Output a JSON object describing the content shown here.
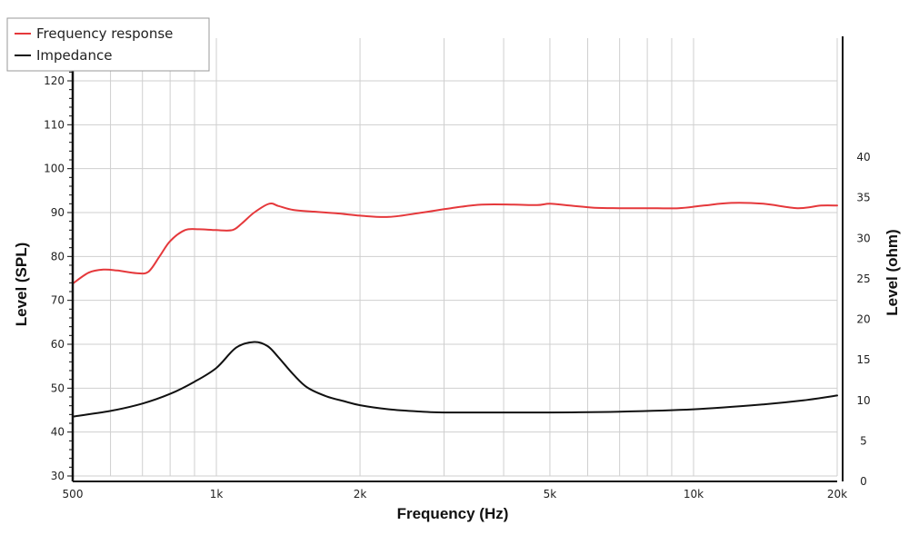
{
  "chart_data": {
    "type": "line",
    "xlabel": "Frequency (Hz)",
    "ylabel": "Level (SPL)",
    "y2label": "Level (ohm)",
    "x_scale": "log",
    "xlim": [
      500,
      20000
    ],
    "ylim": [
      30,
      125
    ],
    "y2lim": [
      0,
      40
    ],
    "grid": true,
    "legend_position": "top-left",
    "x_ticks": [
      {
        "value": 500,
        "label": "500"
      },
      {
        "value": 1000,
        "label": "1k"
      },
      {
        "value": 2000,
        "label": "2k"
      },
      {
        "value": 5000,
        "label": "5k"
      },
      {
        "value": 10000,
        "label": "10k"
      },
      {
        "value": 20000,
        "label": "20k"
      }
    ],
    "x_gridlines": [
      500,
      600,
      700,
      800,
      900,
      1000,
      2000,
      3000,
      4000,
      5000,
      6000,
      7000,
      8000,
      9000,
      10000,
      20000
    ],
    "y_ticks": [
      30,
      40,
      50,
      60,
      70,
      80,
      90,
      100,
      110,
      120
    ],
    "y2_ticks": [
      0,
      5,
      10,
      15,
      20,
      25,
      30,
      35,
      40
    ],
    "series": [
      {
        "name": "Frequency response",
        "axis": "left",
        "color": "#e5383b",
        "x": [
          500,
          540,
          580,
          620,
          680,
          720,
          760,
          800,
          860,
          920,
          1000,
          1080,
          1130,
          1200,
          1290,
          1350,
          1450,
          1600,
          1800,
          2000,
          2300,
          2700,
          3100,
          3600,
          4200,
          4700,
          5000,
          5500,
          6200,
          7000,
          8000,
          9300,
          10500,
          12000,
          14000,
          16500,
          18500,
          20000
        ],
        "values": [
          73.8,
          76.3,
          77,
          76.8,
          76.2,
          76.5,
          80,
          83.5,
          86,
          86.2,
          86,
          86,
          87.5,
          90,
          92,
          91.5,
          90.6,
          90.2,
          89.8,
          89.3,
          89,
          90,
          91,
          91.8,
          91.8,
          91.7,
          92,
          91.6,
          91.1,
          91,
          91,
          91,
          91.6,
          92.2,
          92,
          91,
          91.6,
          91.6
        ]
      },
      {
        "name": "Impedance",
        "axis": "right",
        "color": "#111111",
        "x": [
          500,
          600,
          700,
          800,
          900,
          1000,
          1100,
          1200,
          1280,
          1350,
          1450,
          1550,
          1700,
          1850,
          2000,
          2300,
          2700,
          3000,
          4000,
          5000,
          7000,
          10000,
          14000,
          17000,
          20000
        ],
        "values": [
          8,
          8.7,
          9.6,
          10.8,
          12.3,
          14,
          16.5,
          17.2,
          16.7,
          15.3,
          13.2,
          11.6,
          10.5,
          9.9,
          9.4,
          8.9,
          8.6,
          8.5,
          8.5,
          8.5,
          8.6,
          8.9,
          9.5,
          10,
          10.6
        ]
      }
    ]
  }
}
